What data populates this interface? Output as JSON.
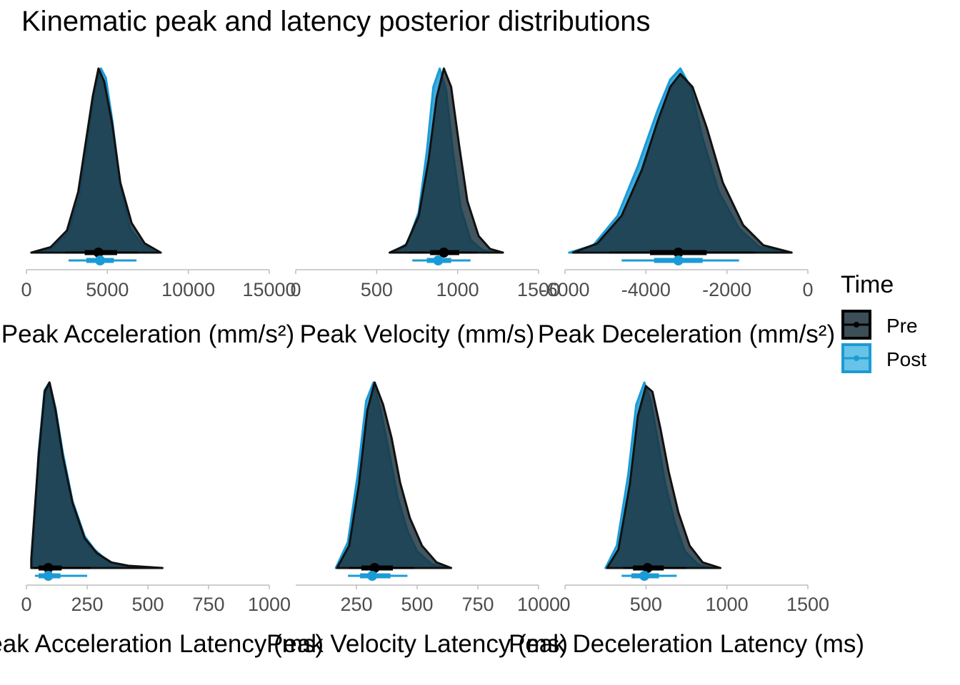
{
  "title": "Kinematic peak and latency posterior distributions",
  "legend": {
    "title": "Time",
    "items": [
      {
        "label": "Pre",
        "color": "#000000",
        "fill": "#1a2f3a"
      },
      {
        "label": "Post",
        "color": "#1b9bd6",
        "fill": "#4cb8e3"
      }
    ]
  },
  "chart_data": [
    {
      "type": "area",
      "xlabel": "Peak Acceleration (mm/s²)",
      "xlim": [
        0,
        15000
      ],
      "xticks": [
        0,
        5000,
        10000,
        15000
      ],
      "xtick_labels": [
        "0",
        "5000",
        "10000",
        "15000"
      ],
      "series": [
        {
          "name": "Pre",
          "median": 4450,
          "ci66": [
            3600,
            5600
          ],
          "ci95": [
            2400,
            6900
          ],
          "x": [
            300,
            1500,
            2500,
            3200,
            3700,
            4100,
            4450,
            4800,
            5300,
            5800,
            6500,
            7300,
            8300
          ],
          "density": [
            0.0,
            0.03,
            0.12,
            0.33,
            0.62,
            0.85,
            1.0,
            0.93,
            0.7,
            0.38,
            0.16,
            0.05,
            0.0
          ]
        },
        {
          "name": "Post",
          "median": 4550,
          "ci66": [
            3700,
            5400
          ],
          "ci95": [
            2600,
            6800
          ],
          "x": [
            500,
            1600,
            2600,
            3300,
            3800,
            4200,
            4600,
            4900,
            5300,
            5800,
            6400,
            7200,
            8000
          ],
          "density": [
            0.0,
            0.02,
            0.11,
            0.31,
            0.6,
            0.88,
            1.0,
            0.95,
            0.72,
            0.36,
            0.13,
            0.04,
            0.0
          ]
        }
      ]
    },
    {
      "type": "area",
      "xlabel": "Peak Velocity (mm/s)",
      "xlim": [
        0,
        1500
      ],
      "xticks": [
        0,
        500,
        1000,
        1500
      ],
      "xtick_labels": [
        "0",
        "500",
        "1000",
        "1500"
      ],
      "series": [
        {
          "name": "Pre",
          "median": 915,
          "ci66": [
            830,
            1010
          ],
          "ci95": [
            700,
            1120
          ],
          "x": [
            580,
            680,
            760,
            820,
            870,
            915,
            960,
            1010,
            1060,
            1130,
            1200,
            1280
          ],
          "density": [
            0.0,
            0.04,
            0.2,
            0.5,
            0.84,
            1.0,
            0.9,
            0.58,
            0.28,
            0.09,
            0.02,
            0.0
          ]
        },
        {
          "name": "Post",
          "median": 880,
          "ci66": [
            810,
            960
          ],
          "ci95": [
            720,
            1080
          ],
          "x": [
            600,
            690,
            760,
            810,
            850,
            890,
            930,
            970,
            1020,
            1080,
            1150,
            1220
          ],
          "density": [
            0.0,
            0.05,
            0.22,
            0.55,
            0.9,
            1.0,
            0.88,
            0.55,
            0.24,
            0.07,
            0.015,
            0.0
          ]
        }
      ]
    },
    {
      "type": "area",
      "xlabel": "Peak Deceleration (mm/s²)",
      "xlim": [
        -6000,
        0
      ],
      "xticks": [
        -6000,
        -4000,
        -2000,
        0
      ],
      "xtick_labels": [
        "-6000",
        "-4000",
        "-2000",
        "0"
      ],
      "series": [
        {
          "name": "Pre",
          "median": -3200,
          "ci66": [
            -3900,
            -2500
          ],
          "ci95": [
            -4900,
            -1300
          ],
          "x": [
            -5800,
            -5200,
            -4600,
            -4100,
            -3700,
            -3400,
            -3150,
            -2850,
            -2500,
            -2100,
            -1600,
            -1100,
            -400
          ],
          "density": [
            0.0,
            0.05,
            0.2,
            0.45,
            0.72,
            0.9,
            0.97,
            0.9,
            0.68,
            0.38,
            0.15,
            0.04,
            0.0
          ]
        },
        {
          "name": "Post",
          "median": -3200,
          "ci66": [
            -3800,
            -2600
          ],
          "ci95": [
            -4600,
            -1700
          ],
          "x": [
            -5900,
            -5300,
            -4700,
            -4200,
            -3700,
            -3400,
            -3150,
            -2900,
            -2600,
            -2200,
            -1700,
            -1200,
            -500
          ],
          "density": [
            0.0,
            0.04,
            0.2,
            0.47,
            0.78,
            0.94,
            1.0,
            0.9,
            0.62,
            0.33,
            0.13,
            0.03,
            0.0
          ]
        }
      ]
    },
    {
      "type": "area",
      "xlabel": "Peak Acceleration Latency (ms)",
      "xlim": [
        0,
        1000
      ],
      "xticks": [
        0,
        250,
        500,
        750,
        1000
      ],
      "xtick_labels": [
        "0",
        "250",
        "500",
        "750",
        "1000"
      ],
      "series": [
        {
          "name": "Pre",
          "median": 90,
          "ci66": [
            50,
            145
          ],
          "ci95": [
            30,
            265
          ],
          "x": [
            20,
            50,
            75,
            95,
            120,
            150,
            190,
            240,
            290,
            350,
            420,
            560
          ],
          "density": [
            0.05,
            0.6,
            0.95,
            1.0,
            0.85,
            0.6,
            0.35,
            0.16,
            0.08,
            0.03,
            0.012,
            0.0
          ]
        },
        {
          "name": "Post",
          "median": 90,
          "ci66": [
            50,
            140
          ],
          "ci95": [
            35,
            250
          ],
          "x": [
            25,
            50,
            75,
            95,
            120,
            150,
            190,
            240,
            280,
            340,
            420,
            540
          ],
          "density": [
            0.05,
            0.62,
            0.96,
            1.0,
            0.86,
            0.62,
            0.36,
            0.17,
            0.1,
            0.03,
            0.01,
            0.0
          ]
        }
      ]
    },
    {
      "type": "area",
      "xlabel": "Peak Velocity Latency (ms)",
      "xlim": [
        0,
        1000
      ],
      "xticks": [
        250,
        500,
        750,
        1000
      ],
      "xtick_labels": [
        "250",
        "500",
        "750",
        "1000"
      ],
      "series": [
        {
          "name": "Pre",
          "median": 325,
          "ci66": [
            270,
            400
          ],
          "ci95": [
            220,
            490
          ],
          "x": [
            170,
            220,
            260,
            295,
            325,
            360,
            395,
            430,
            470,
            520,
            580,
            640
          ],
          "density": [
            0.0,
            0.12,
            0.45,
            0.85,
            1.0,
            0.88,
            0.7,
            0.46,
            0.27,
            0.12,
            0.03,
            0.0
          ]
        },
        {
          "name": "Post",
          "median": 315,
          "ci66": [
            265,
            390
          ],
          "ci95": [
            215,
            460
          ],
          "x": [
            165,
            215,
            255,
            290,
            320,
            350,
            385,
            420,
            460,
            500,
            560,
            620
          ],
          "density": [
            0.0,
            0.14,
            0.5,
            0.9,
            1.0,
            0.85,
            0.62,
            0.38,
            0.2,
            0.09,
            0.02,
            0.0
          ]
        }
      ]
    },
    {
      "type": "area",
      "xlabel": "Peak Deceleration Latency (ms)",
      "xlim": [
        0,
        1500
      ],
      "xticks": [
        0,
        500,
        1000,
        1500
      ],
      "xtick_labels": [
        "0",
        "500",
        "1000",
        "1500"
      ],
      "series": [
        {
          "name": "Pre",
          "median": 510,
          "ci66": [
            420,
            610
          ],
          "ci95": [
            360,
            750
          ],
          "x": [
            260,
            330,
            400,
            450,
            500,
            540,
            590,
            640,
            700,
            770,
            850,
            960
          ],
          "density": [
            0.0,
            0.1,
            0.45,
            0.82,
            0.98,
            0.95,
            0.75,
            0.52,
            0.3,
            0.12,
            0.03,
            0.0
          ]
        },
        {
          "name": "Post",
          "median": 490,
          "ci66": [
            410,
            580
          ],
          "ci95": [
            350,
            690
          ],
          "x": [
            250,
            320,
            390,
            440,
            490,
            530,
            575,
            620,
            680,
            740,
            820,
            900
          ],
          "density": [
            0.0,
            0.12,
            0.5,
            0.88,
            1.0,
            0.9,
            0.68,
            0.45,
            0.24,
            0.09,
            0.02,
            0.0
          ]
        }
      ]
    }
  ]
}
